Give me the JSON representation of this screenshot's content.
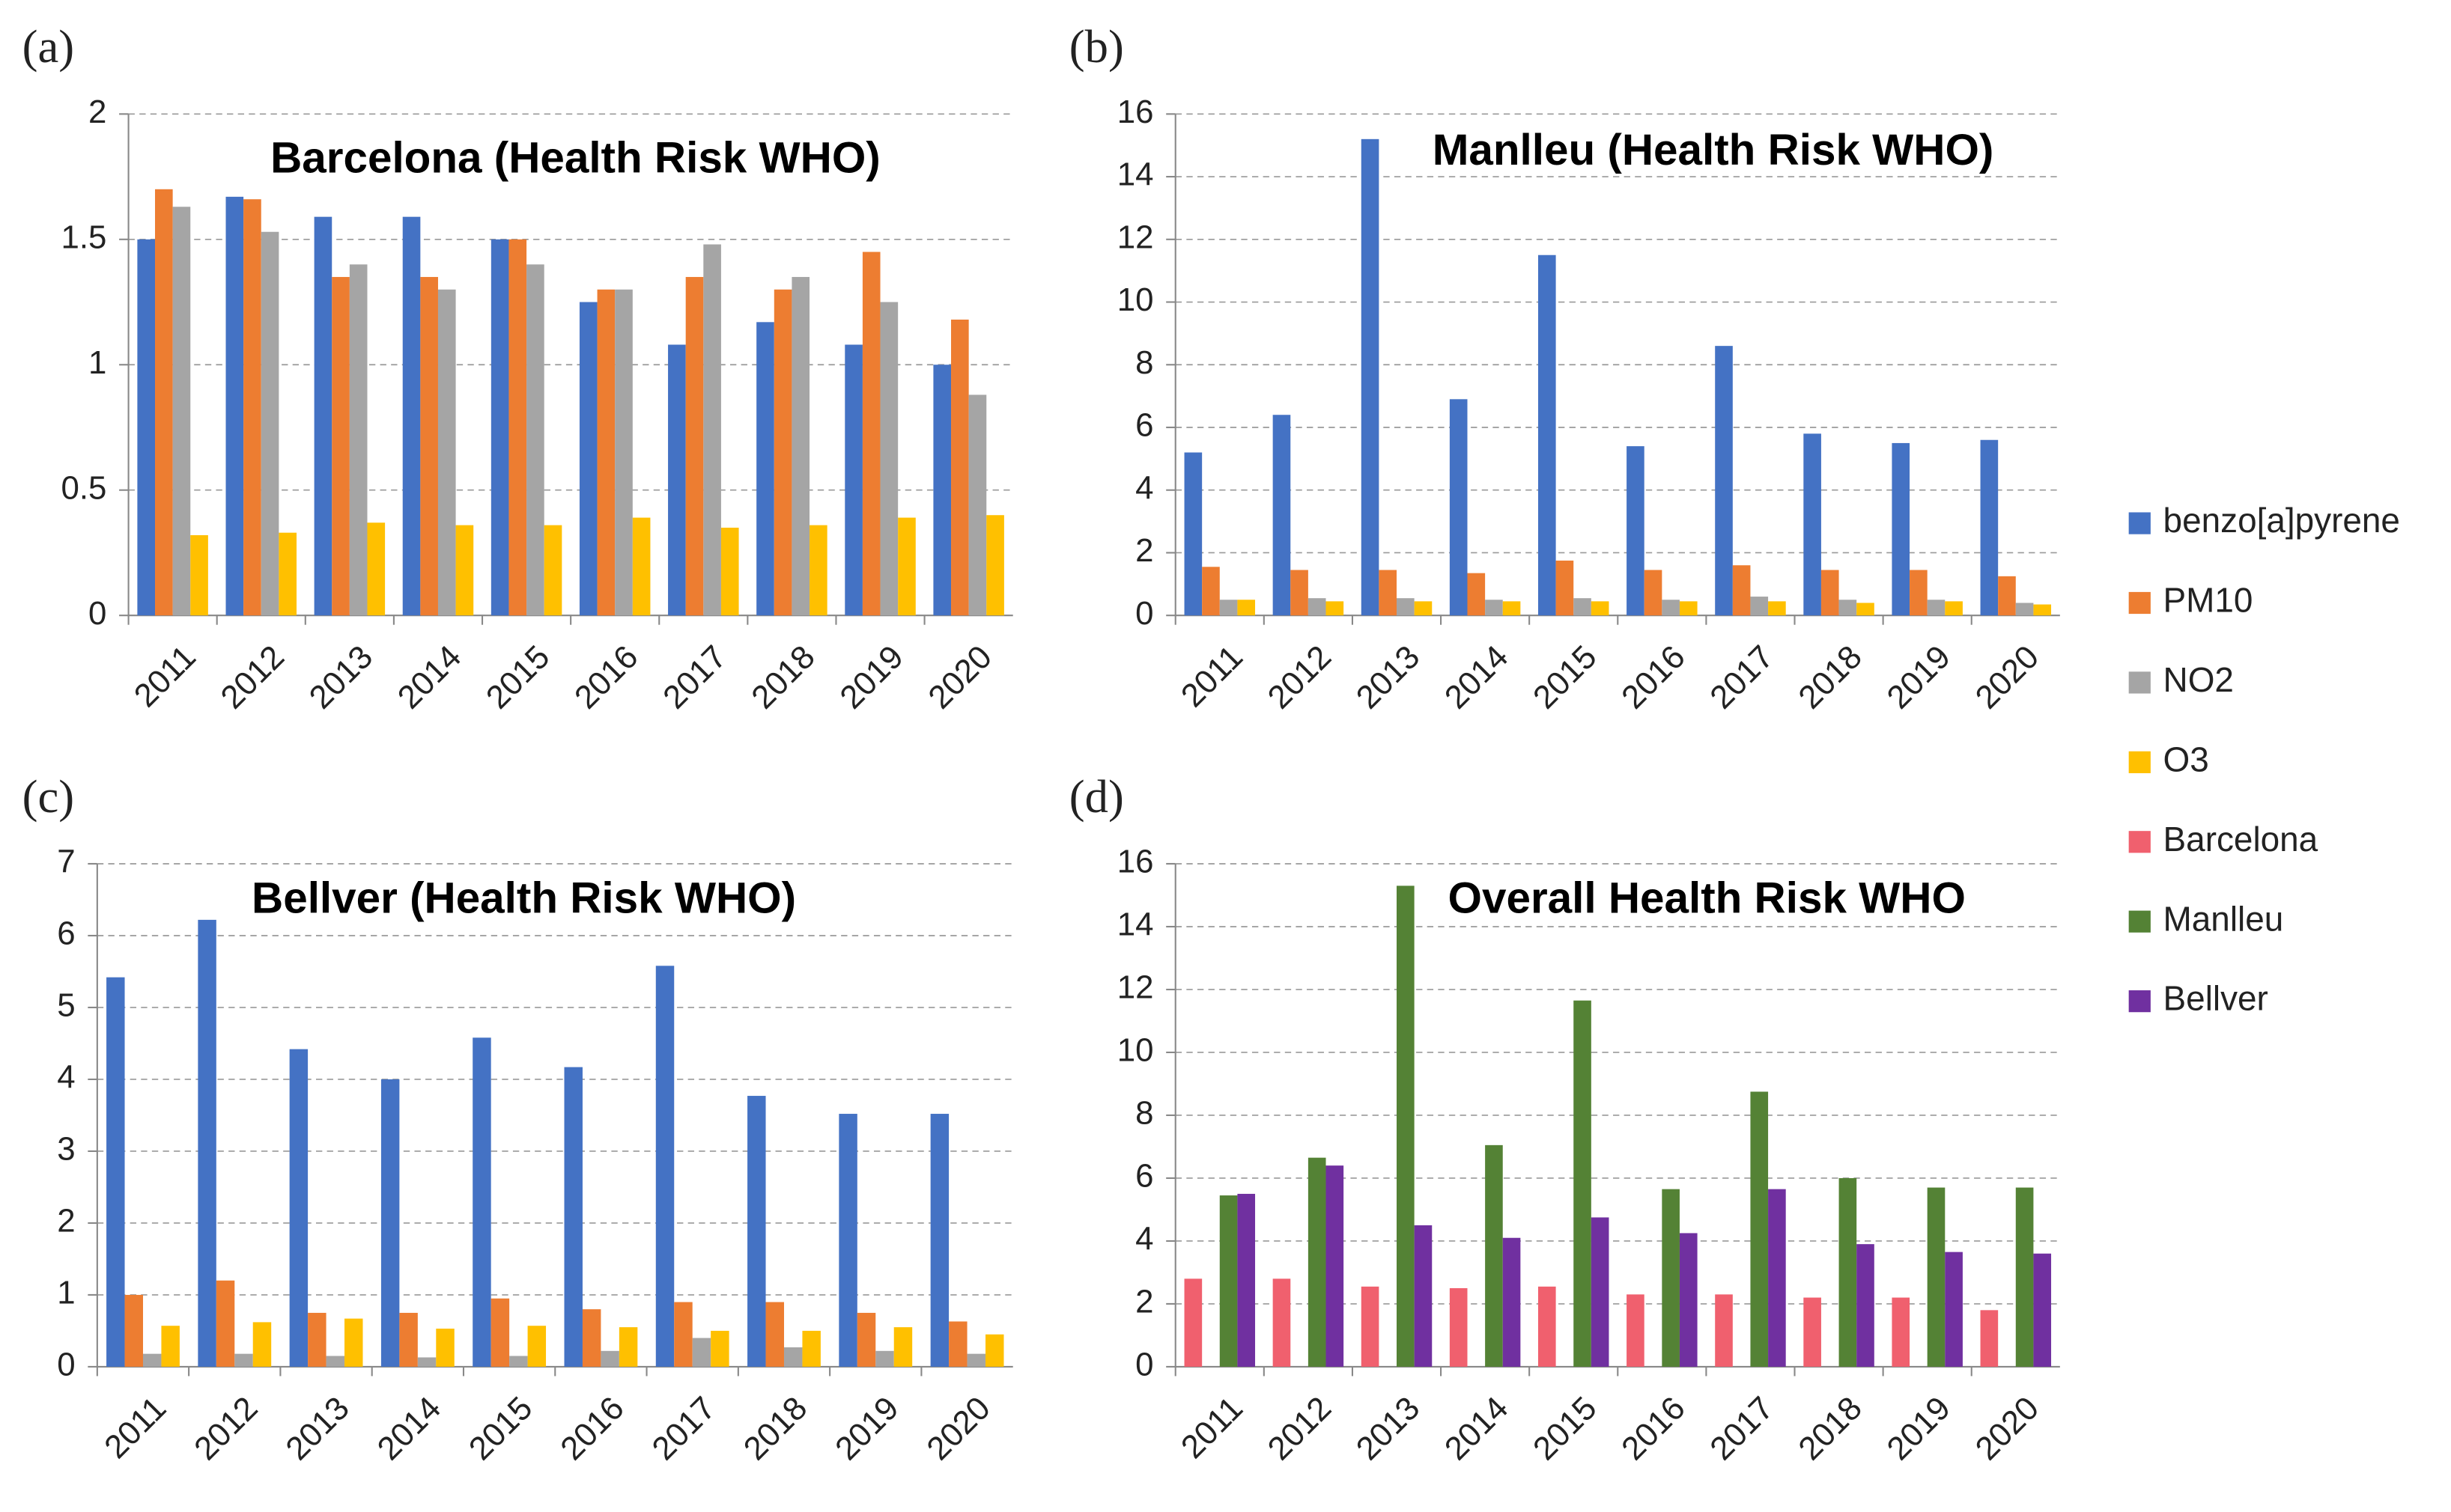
{
  "chart_data": [
    {
      "type": "bar",
      "label": "(a)",
      "title": "Barcelona (Health Risk WHO)",
      "categories": [
        "2011",
        "2012",
        "2013",
        "2014",
        "2015",
        "2016",
        "2017",
        "2018",
        "2019",
        "2020"
      ],
      "series": [
        {
          "name": "benzo[a]pyrene",
          "color": "#4472c4",
          "values": [
            1.5,
            1.67,
            1.59,
            1.59,
            1.5,
            1.25,
            1.08,
            1.17,
            1.08,
            1.0
          ]
        },
        {
          "name": "PM10",
          "color": "#ed7d31",
          "values": [
            1.7,
            1.66,
            1.35,
            1.35,
            1.5,
            1.3,
            1.35,
            1.3,
            1.45,
            1.18
          ]
        },
        {
          "name": "NO2",
          "color": "#a5a5a5",
          "values": [
            1.63,
            1.53,
            1.4,
            1.3,
            1.4,
            1.3,
            1.48,
            1.35,
            1.25,
            0.88
          ]
        },
        {
          "name": "O3",
          "color": "#ffc000",
          "values": [
            0.32,
            0.33,
            0.37,
            0.36,
            0.36,
            0.39,
            0.35,
            0.36,
            0.39,
            0.4
          ]
        }
      ],
      "ylim": [
        0,
        2
      ],
      "yticks": [
        0,
        0.5,
        1,
        1.5,
        2
      ],
      "grid": true
    },
    {
      "type": "bar",
      "label": "(b)",
      "title": "Manlleu (Health Risk WHO)",
      "categories": [
        "2011",
        "2012",
        "2013",
        "2014",
        "2015",
        "2016",
        "2017",
        "2018",
        "2019",
        "2020"
      ],
      "series": [
        {
          "name": "benzo[a]pyrene",
          "color": "#4472c4",
          "values": [
            5.2,
            6.4,
            15.2,
            6.9,
            11.5,
            5.4,
            8.6,
            5.8,
            5.5,
            5.6
          ]
        },
        {
          "name": "PM10",
          "color": "#ed7d31",
          "values": [
            1.55,
            1.45,
            1.45,
            1.35,
            1.75,
            1.45,
            1.6,
            1.45,
            1.45,
            1.25
          ]
        },
        {
          "name": "NO2",
          "color": "#a5a5a5",
          "values": [
            0.5,
            0.55,
            0.55,
            0.5,
            0.55,
            0.5,
            0.6,
            0.5,
            0.5,
            0.4
          ]
        },
        {
          "name": "O3",
          "color": "#ffc000",
          "values": [
            0.5,
            0.45,
            0.45,
            0.45,
            0.45,
            0.45,
            0.45,
            0.4,
            0.45,
            0.35
          ]
        }
      ],
      "ylim": [
        0,
        16
      ],
      "yticks": [
        0,
        2,
        4,
        6,
        8,
        10,
        12,
        14,
        16
      ],
      "grid": true
    },
    {
      "type": "bar",
      "label": "(c)",
      "title": "Bellver (Health Risk WHO)",
      "categories": [
        "2011",
        "2012",
        "2013",
        "2014",
        "2015",
        "2016",
        "2017",
        "2018",
        "2019",
        "2020"
      ],
      "series": [
        {
          "name": "benzo[a]pyrene",
          "color": "#4472c4",
          "values": [
            5.42,
            6.22,
            4.42,
            4.0,
            4.58,
            4.17,
            5.58,
            3.77,
            3.52,
            3.52
          ]
        },
        {
          "name": "PM10",
          "color": "#ed7d31",
          "values": [
            1.0,
            1.2,
            0.75,
            0.75,
            0.95,
            0.8,
            0.9,
            0.9,
            0.75,
            0.63
          ]
        },
        {
          "name": "NO2",
          "color": "#a5a5a5",
          "values": [
            0.18,
            0.18,
            0.15,
            0.13,
            0.15,
            0.22,
            0.4,
            0.27,
            0.22,
            0.18
          ]
        },
        {
          "name": "O3",
          "color": "#ffc000",
          "values": [
            0.57,
            0.62,
            0.67,
            0.53,
            0.57,
            0.55,
            0.5,
            0.5,
            0.55,
            0.45
          ]
        }
      ],
      "ylim": [
        0,
        7
      ],
      "yticks": [
        0,
        1,
        2,
        3,
        4,
        5,
        6,
        7
      ],
      "grid": true
    },
    {
      "type": "bar",
      "label": "(d)",
      "title": "Overall Health Risk WHO",
      "categories": [
        "2011",
        "2012",
        "2013",
        "2014",
        "2015",
        "2016",
        "2017",
        "2018",
        "2019",
        "2020"
      ],
      "series": [
        {
          "name": "Barcelona",
          "color": "#f0606e",
          "values": [
            2.8,
            2.8,
            2.55,
            2.5,
            2.55,
            2.3,
            2.3,
            2.2,
            2.2,
            1.8
          ]
        },
        {
          "name": "Manlleu",
          "color": "#548235",
          "values": [
            5.45,
            6.65,
            15.3,
            7.05,
            11.65,
            5.65,
            8.75,
            6.0,
            5.7,
            5.7
          ]
        },
        {
          "name": "Bellver",
          "color": "#7030a0",
          "values": [
            5.5,
            6.4,
            4.5,
            4.1,
            4.75,
            4.25,
            5.65,
            3.9,
            3.65,
            3.6
          ]
        }
      ],
      "ylim": [
        0,
        16
      ],
      "yticks": [
        0,
        2,
        4,
        6,
        8,
        10,
        12,
        14,
        16
      ],
      "grid": true
    }
  ]
}
